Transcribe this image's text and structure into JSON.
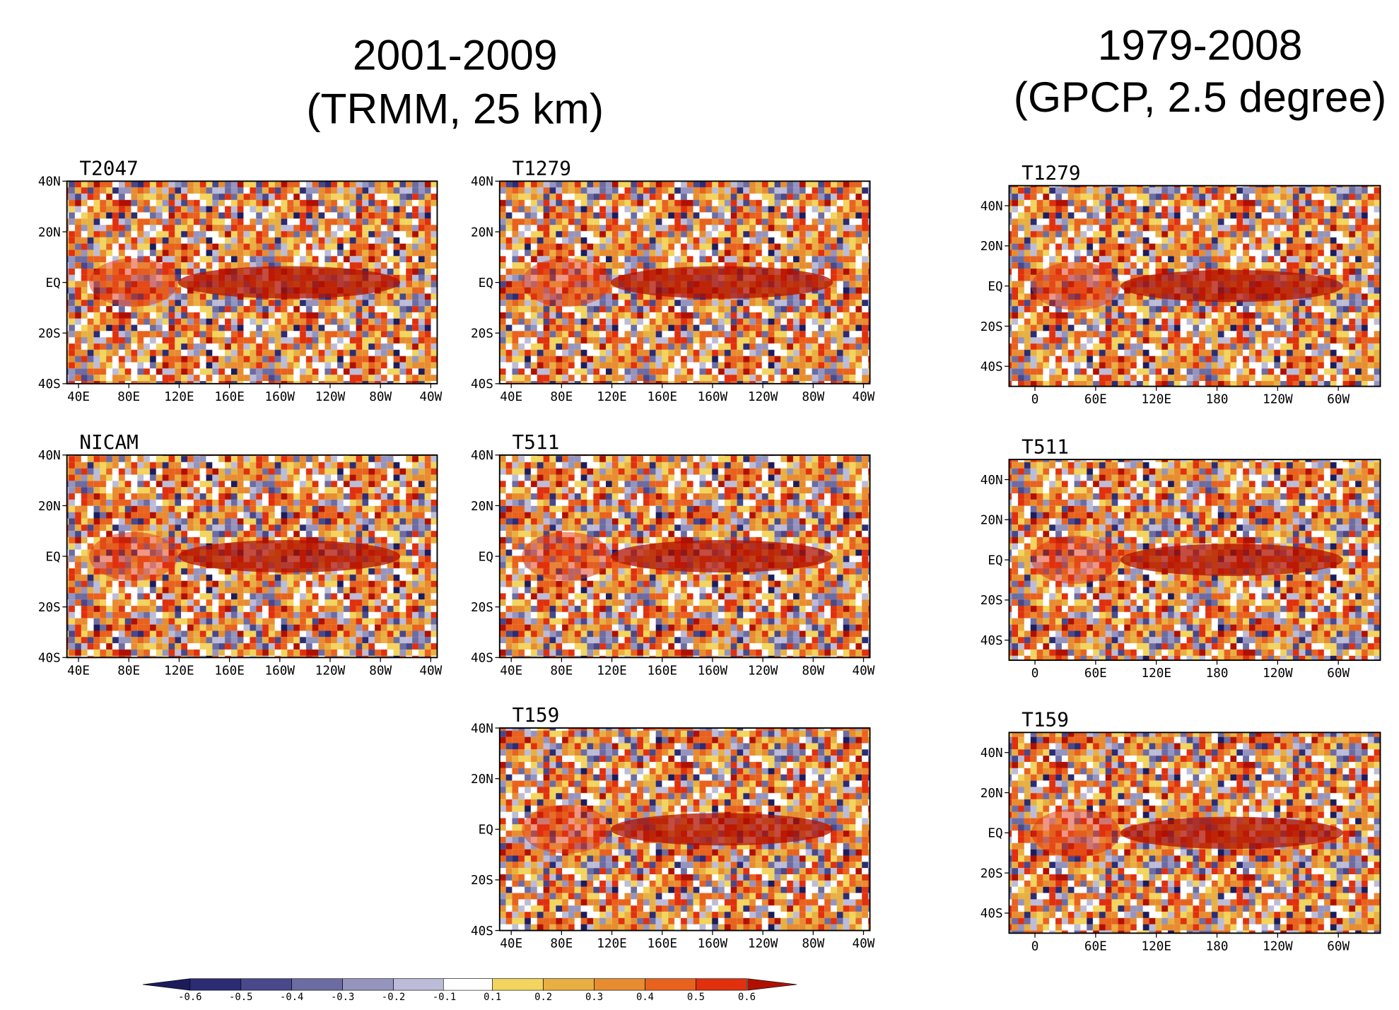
{
  "left_header": {
    "period": "2001-2009",
    "source": "(TRMM, 25 km)"
  },
  "right_header": {
    "period": "1979-2008",
    "source": "(GPCP, 2.5 degree)"
  },
  "trmm_panels": [
    "T2047",
    "T1279",
    "NICAM",
    "T511",
    "T159"
  ],
  "gpcp_panels": [
    "T1279",
    "T511",
    "T159"
  ],
  "left_lat_ticks": [
    "40N",
    "20N",
    "EQ",
    "20S",
    "40S"
  ],
  "left_lon_ticks": [
    "40E",
    "80E",
    "120E",
    "160E",
    "160W",
    "120W",
    "80W",
    "40W"
  ],
  "right_lat_ticks": [
    "40N",
    "20N",
    "EQ",
    "20S",
    "40S"
  ],
  "right_lon_ticks": [
    "0",
    "60E",
    "120E",
    "180",
    "120W",
    "60W"
  ],
  "colorbar": {
    "levels": [
      -0.6,
      -0.5,
      -0.4,
      -0.3,
      -0.2,
      -0.1,
      0.1,
      0.2,
      0.3,
      0.4,
      0.5,
      0.6
    ],
    "colors": [
      "#1c1c5c",
      "#2c2c74",
      "#48488a",
      "#6c6ca2",
      "#9494be",
      "#bcbcd8",
      "#ffffff",
      "#f2d45e",
      "#e8b042",
      "#e88c30",
      "#e8621e",
      "#e0300e",
      "#b01000"
    ]
  }
}
